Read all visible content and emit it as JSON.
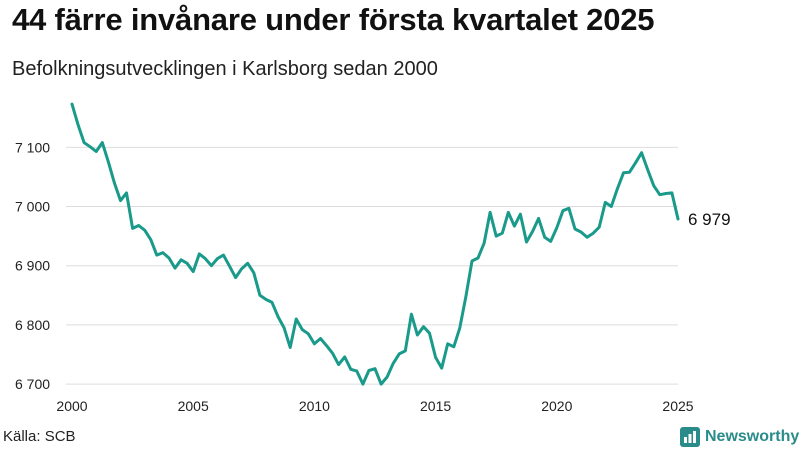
{
  "header": {
    "title": "44 färre invånare under första kvartalet 2025",
    "subtitle": "Befolkningsutvecklingen i Karlsborg sedan 2000"
  },
  "footer": {
    "source": "Källa: SCB",
    "brand": "Newsworthy",
    "brand_icon": "bar-chart-icon"
  },
  "colors": {
    "line": "#1a9a8a",
    "grid": "#dddddd",
    "brand": "#2a8c8a"
  },
  "chart_data": {
    "type": "line",
    "title": "44 färre invånare under första kvartalet 2025",
    "subtitle": "Befolkningsutvecklingen i Karlsborg sedan 2000",
    "xlabel": "",
    "ylabel": "",
    "xlim": [
      2000,
      2025
    ],
    "ylim": [
      6690,
      7180
    ],
    "grid": "horizontal",
    "legend": "none",
    "x_ticks": [
      2000,
      2005,
      2010,
      2015,
      2020,
      2025
    ],
    "x_tick_labels": [
      "2000",
      "2005",
      "2010",
      "2015",
      "2020",
      "2025"
    ],
    "y_ticks": [
      6700,
      6800,
      6900,
      7000,
      7100
    ],
    "y_tick_labels": [
      "6 700",
      "6 800",
      "6 900",
      "7 000",
      "7 100"
    ],
    "end_label": "6 979",
    "series": [
      {
        "x": [
          2000.0,
          2000.25,
          2000.5,
          2000.75,
          2001.0,
          2001.25,
          2001.5,
          2001.75,
          2002.0,
          2002.25,
          2002.5,
          2002.75,
          2003.0,
          2003.25,
          2003.5,
          2003.75,
          2004.0,
          2004.25,
          2004.5,
          2004.75,
          2005.0,
          2005.25,
          2005.5,
          2005.75,
          2006.0,
          2006.25,
          2006.5,
          2006.75,
          2007.0,
          2007.25,
          2007.5,
          2007.75,
          2008.0,
          2008.25,
          2008.5,
          2008.75,
          2009.0,
          2009.25,
          2009.5,
          2009.75,
          2010.0,
          2010.25,
          2010.5,
          2010.75,
          2011.0,
          2011.25,
          2011.5,
          2011.75,
          2012.0,
          2012.25,
          2012.5,
          2012.75,
          2013.0,
          2013.25,
          2013.5,
          2013.75,
          2014.0,
          2014.25,
          2014.5,
          2014.75,
          2015.0,
          2015.25,
          2015.5,
          2015.75,
          2016.0,
          2016.25,
          2016.5,
          2016.75,
          2017.0,
          2017.25,
          2017.5,
          2017.75,
          2018.0,
          2018.25,
          2018.5,
          2018.75,
          2019.0,
          2019.25,
          2019.5,
          2019.75,
          2020.0,
          2020.25,
          2020.5,
          2020.75,
          2021.0,
          2021.25,
          2021.5,
          2021.75,
          2022.0,
          2022.25,
          2022.5,
          2022.75,
          2023.0,
          2023.25,
          2023.5,
          2023.75,
          2024.0,
          2024.25,
          2024.5,
          2024.75,
          2025.0
        ],
        "values": [
          7173,
          7138,
          7108,
          7101,
          7093,
          7108,
          7075,
          7040,
          7010,
          7023,
          6963,
          6968,
          6960,
          6944,
          6918,
          6922,
          6913,
          6896,
          6910,
          6904,
          6890,
          6920,
          6912,
          6900,
          6912,
          6918,
          6899,
          6880,
          6895,
          6904,
          6888,
          6850,
          6843,
          6838,
          6814,
          6795,
          6762,
          6810,
          6792,
          6785,
          6768,
          6777,
          6765,
          6752,
          6733,
          6746,
          6725,
          6722,
          6700,
          6723,
          6726,
          6700,
          6712,
          6735,
          6751,
          6756,
          6818,
          6783,
          6797,
          6786,
          6745,
          6727,
          6768,
          6763,
          6795,
          6848,
          6908,
          6913,
          6938,
          6990,
          6950,
          6955,
          6990,
          6967,
          6987,
          6940,
          6958,
          6980,
          6948,
          6941,
          6964,
          6993,
          6997,
          6962,
          6957,
          6948,
          6955,
          6965,
          7007,
          7000,
          7030,
          7057,
          7058,
          7074,
          7091,
          7062,
          7035,
          7020,
          7022,
          7023,
          6979
        ]
      }
    ]
  }
}
